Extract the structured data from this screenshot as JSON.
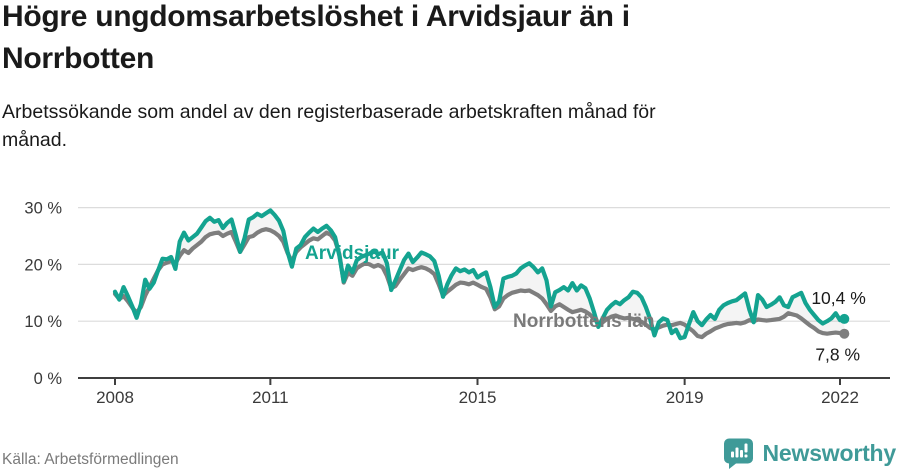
{
  "header": {
    "title": "Högre ungdomsarbetslöshet i Arvidsjaur än i\nNorrbotten",
    "subtitle": "Arbetssökande som andel av den registerbaserade arbetskraften månad för\nmånad."
  },
  "footer": {
    "source": "Källa: Arbetsförmedlingen",
    "brand": "Newsworthy",
    "brand_icon": "newsworthy-bars-icon"
  },
  "colors": {
    "arvidsjaur": "#14a390",
    "norrbotten": "#7e7e7e",
    "norrbotten_label": "#7a7a7a",
    "grid": "#dcdcdc",
    "axis": "#3f3f3f",
    "axis_text": "#3a3a3a",
    "annotation": "#1a1a1a",
    "fill_between": "rgba(150,150,150,0.10)",
    "brand": "#3f9a98"
  },
  "chart_data": {
    "type": "line",
    "unit": "%",
    "frequency": "monthly",
    "x_start": "2008-01",
    "x_end": "2022-02",
    "ylim": [
      0,
      30
    ],
    "grid": "horizontal",
    "ytick_values": [
      0,
      10,
      20,
      30
    ],
    "ytick_labels": [
      "0 %",
      "10 %",
      "20 %",
      "30 %"
    ],
    "xtick_years": [
      2008,
      2011,
      2015,
      2019,
      2022
    ],
    "xtick_labels": [
      "2008",
      "2011",
      "2015",
      "2019",
      "2022"
    ],
    "series": [
      {
        "name": "Arvidsjaur",
        "end_label": "10,4 %",
        "end_value": 10.4,
        "values": [
          15.2,
          13.8,
          16.0,
          14.4,
          12.6,
          10.6,
          13.0,
          17.3,
          15.7,
          16.8,
          19.0,
          21.0,
          20.9,
          21.3,
          19.2,
          24.0,
          25.6,
          24.2,
          24.8,
          25.4,
          26.5,
          27.6,
          28.2,
          27.5,
          27.8,
          26.4,
          27.3,
          27.9,
          25.2,
          22.2,
          24.6,
          27.9,
          28.3,
          28.9,
          28.5,
          29.0,
          29.5,
          28.7,
          27.7,
          25.9,
          22.2,
          19.6,
          22.8,
          23.4,
          24.8,
          25.6,
          26.3,
          25.7,
          26.3,
          26.8,
          26.0,
          24.8,
          21.5,
          17.0,
          19.8,
          18.6,
          20.7,
          21.3,
          21.6,
          21.9,
          22.4,
          21.8,
          22.1,
          20.2,
          15.5,
          17.2,
          19.0,
          20.8,
          21.9,
          20.4,
          21.2,
          22.1,
          21.8,
          21.4,
          20.6,
          18.0,
          14.3,
          16.5,
          18.1,
          19.3,
          18.8,
          19.1,
          18.6,
          19.0,
          17.7,
          18.2,
          18.6,
          16.0,
          12.5,
          13.5,
          17.5,
          17.8,
          18.0,
          18.4,
          19.3,
          19.8,
          20.2,
          19.5,
          18.6,
          19.3,
          17.2,
          12.6,
          15.1,
          15.5,
          16.0,
          15.4,
          16.7,
          15.4,
          16.3,
          15.8,
          14.0,
          11.6,
          9.0,
          10.5,
          12.0,
          12.8,
          13.4,
          13.0,
          13.7,
          14.2,
          15.2,
          15.0,
          14.2,
          12.5,
          10.4,
          7.5,
          9.8,
          10.5,
          10.2,
          7.9,
          8.5,
          7.0,
          7.2,
          9.5,
          11.6,
          10.0,
          9.3,
          10.3,
          11.1,
          10.4,
          12.0,
          12.8,
          13.2,
          13.5,
          13.7,
          14.3,
          14.9,
          12.0,
          9.8,
          14.6,
          13.8,
          12.5,
          12.9,
          13.4,
          14.2,
          12.8,
          12.5,
          14.2,
          14.6,
          15.0,
          13.2,
          12.0,
          11.1,
          10.2,
          9.6,
          10.0,
          10.5,
          11.4,
          10.2,
          10.4
        ]
      },
      {
        "name": "Norrbottens län",
        "end_label": "7,8 %",
        "end_value": 7.8,
        "values": [
          14.8,
          13.9,
          14.4,
          13.5,
          12.4,
          11.5,
          12.5,
          14.5,
          16.0,
          17.5,
          19.0,
          20.0,
          20.3,
          20.6,
          20.2,
          21.5,
          22.5,
          22.0,
          22.8,
          23.4,
          24.0,
          24.8,
          25.3,
          25.5,
          25.6,
          25.0,
          25.4,
          25.7,
          24.0,
          22.2,
          23.5,
          24.8,
          25.0,
          25.6,
          26.0,
          26.2,
          26.0,
          25.6,
          25.0,
          24.0,
          22.0,
          20.5,
          22.2,
          23.0,
          23.6,
          24.2,
          24.6,
          24.4,
          25.0,
          25.6,
          25.2,
          24.2,
          21.8,
          16.8,
          18.5,
          18.0,
          19.3,
          19.8,
          20.2,
          20.0,
          19.6,
          19.9,
          19.5,
          18.0,
          15.8,
          16.2,
          17.3,
          18.3,
          19.3,
          19.0,
          19.3,
          19.5,
          19.3,
          18.9,
          18.3,
          16.5,
          14.5,
          15.2,
          15.8,
          16.4,
          16.8,
          16.7,
          16.5,
          16.8,
          16.4,
          16.0,
          15.7,
          14.2,
          12.1,
          12.6,
          14.0,
          14.6,
          15.0,
          15.2,
          15.4,
          15.3,
          15.4,
          15.0,
          14.6,
          14.0,
          13.0,
          11.8,
          12.6,
          13.0,
          12.5,
          12.0,
          11.6,
          11.8,
          12.0,
          11.7,
          11.2,
          10.5,
          9.6,
          9.8,
          10.4,
          10.8,
          11.0,
          10.7,
          10.5,
          10.6,
          10.4,
          10.2,
          9.9,
          9.4,
          8.8,
          8.5,
          8.9,
          9.2,
          9.4,
          9.3,
          9.5,
          9.7,
          9.4,
          8.8,
          8.2,
          7.4,
          7.2,
          7.8,
          8.2,
          8.7,
          9.0,
          9.3,
          9.5,
          9.6,
          9.7,
          9.6,
          9.8,
          10.2,
          10.0,
          10.3,
          10.2,
          10.1,
          10.2,
          10.3,
          10.4,
          10.8,
          11.4,
          11.2,
          11.0,
          10.5,
          9.9,
          9.3,
          8.8,
          8.2,
          7.9,
          7.8,
          7.9,
          8.0,
          7.9,
          7.8
        ]
      }
    ]
  }
}
